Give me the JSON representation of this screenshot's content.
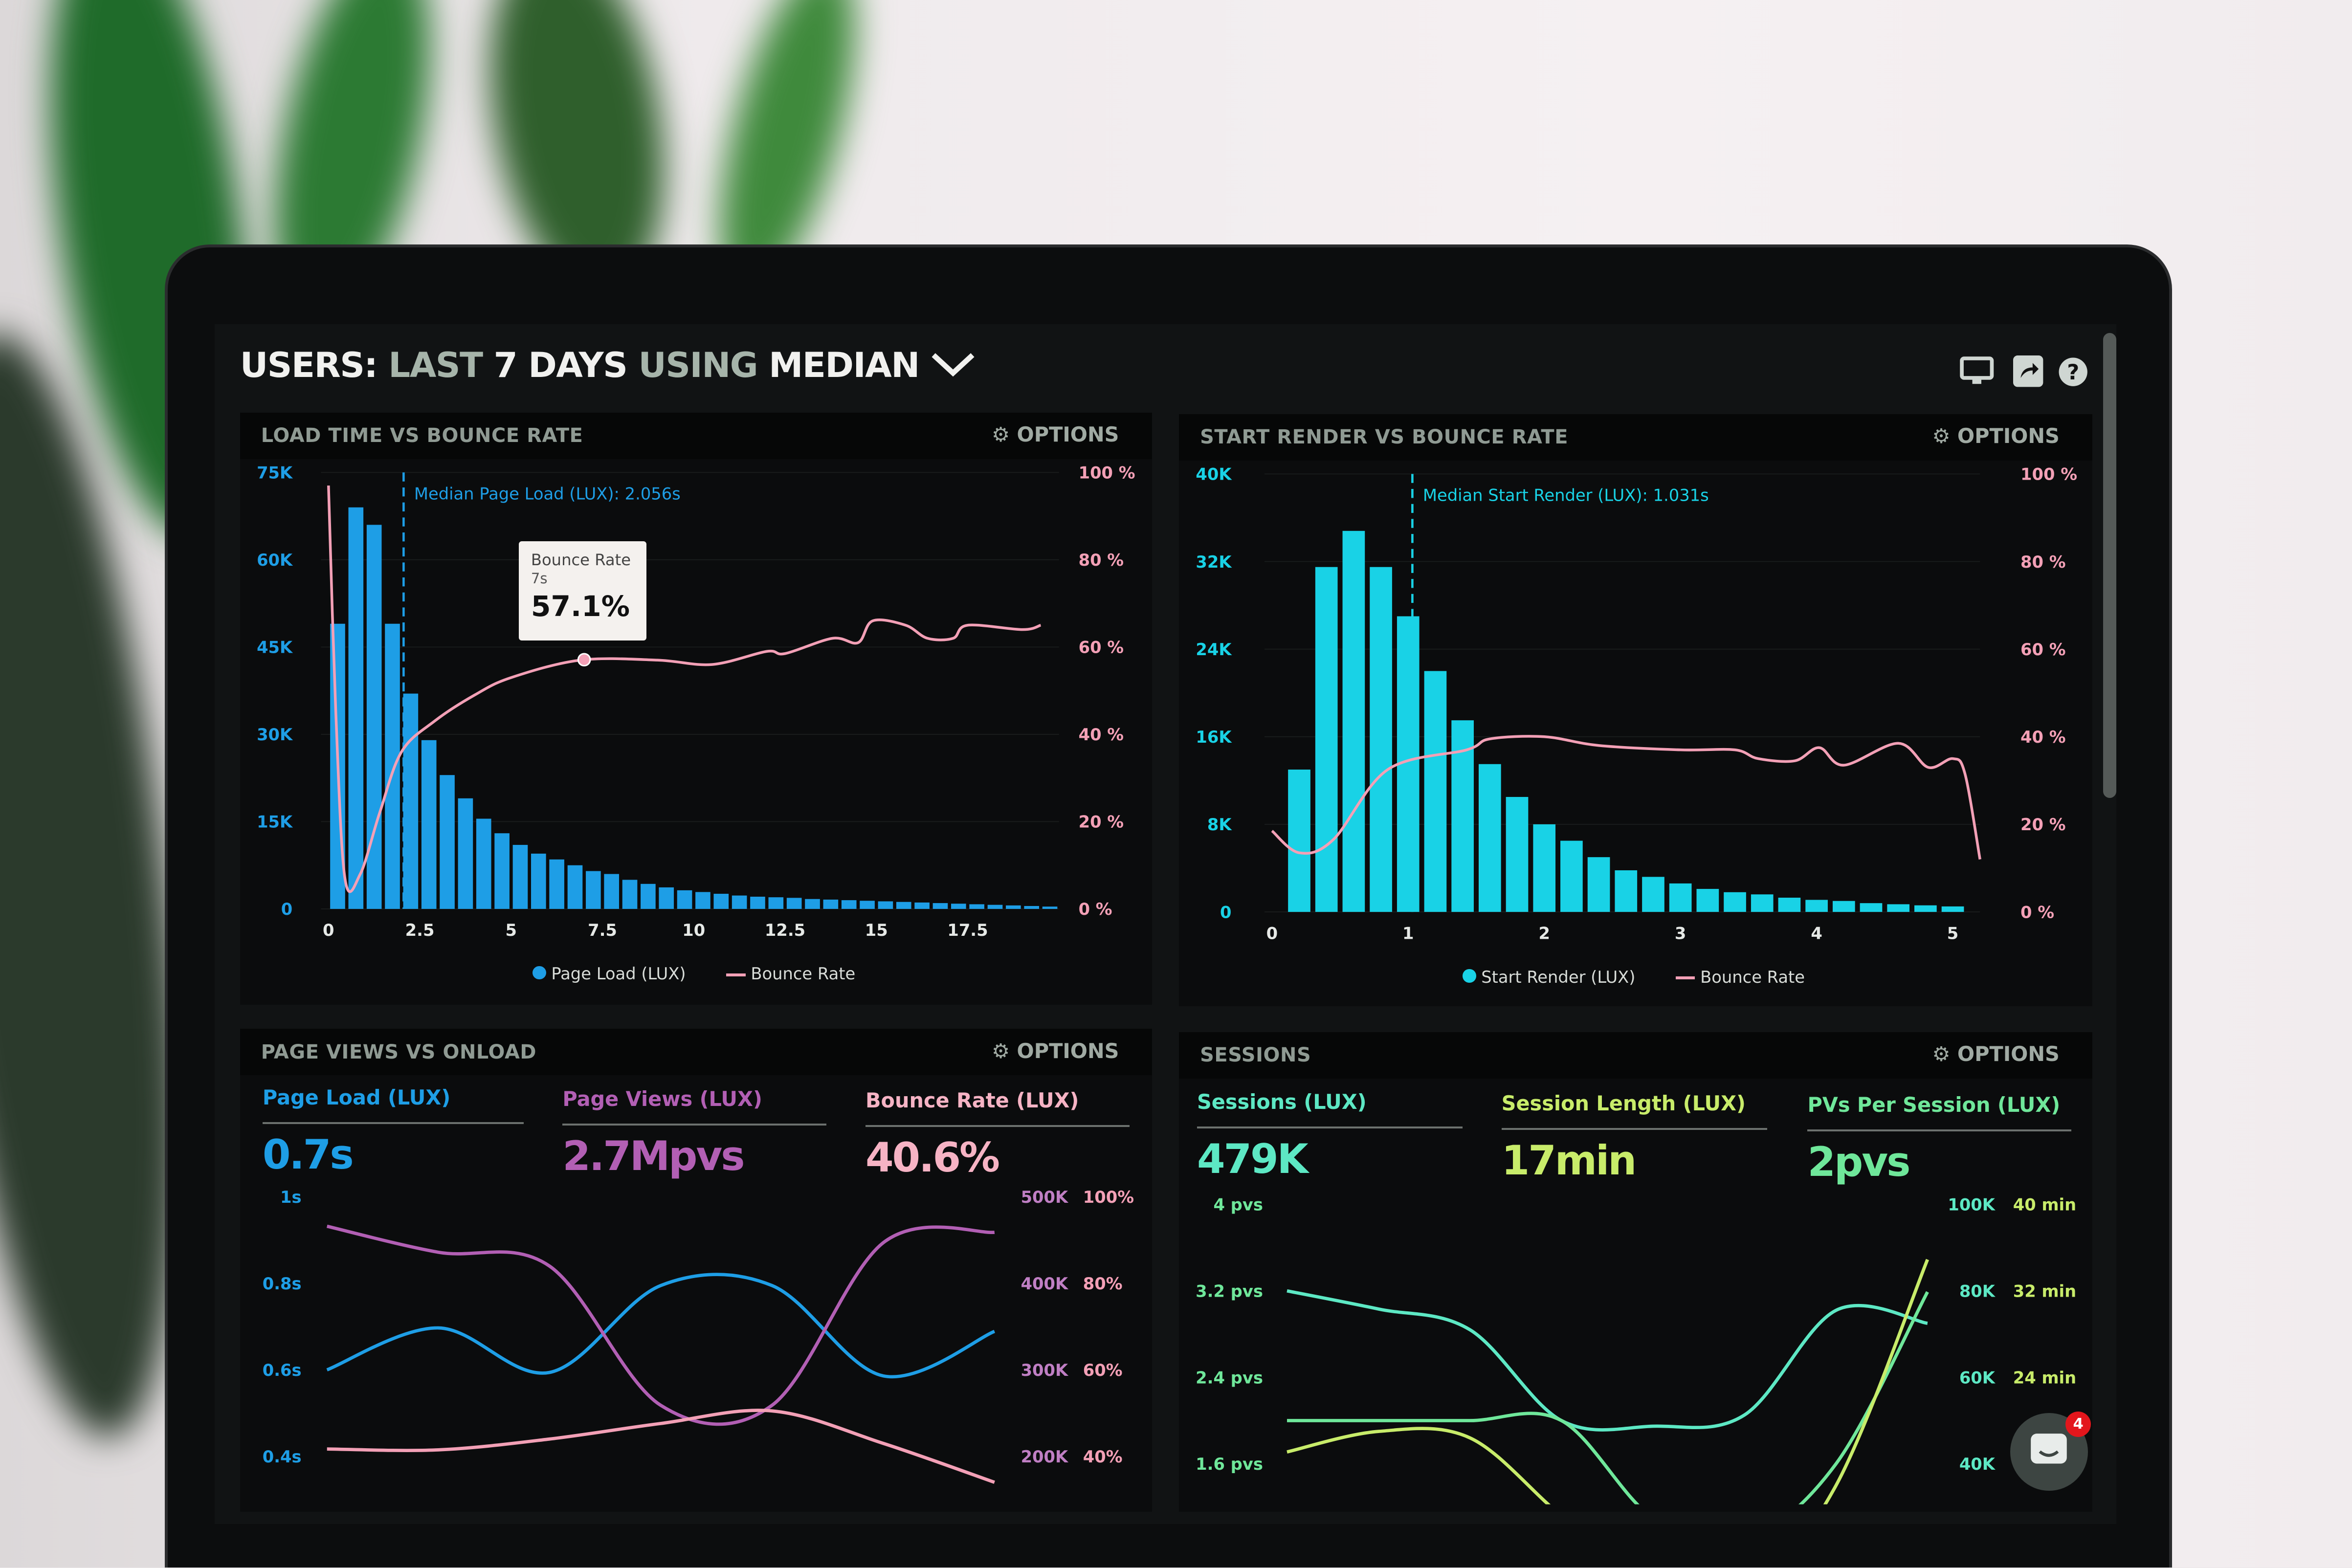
{
  "header": {
    "title_parts": [
      "USERS:",
      "LAST",
      "7 DAYS",
      "USING",
      "MEDIAN"
    ],
    "dropdown_icon": "chevron-down-icon",
    "toolbar_icons": [
      "monitor-icon",
      "share-icon",
      "help-icon"
    ]
  },
  "colors": {
    "blue": "#1e9ee6",
    "cyan": "#19d2e6",
    "pink": "#f3a0b6",
    "purple": "#b25fb4",
    "teal": "#5de8c4",
    "green": "#6fe79a",
    "lime": "#c8ec6a",
    "badge": "#e3161c"
  },
  "panels": {
    "load_time": {
      "title": "LOAD TIME VS BOUNCE RATE",
      "options": "OPTIONS",
      "median_label": "Median Page Load (LUX): 2.056s",
      "tooltip": {
        "title": "Bounce Rate",
        "x": "7s",
        "value": "57.1%"
      },
      "legend": [
        "Page Load (LUX)",
        "Bounce Rate"
      ]
    },
    "start_render": {
      "title": "START RENDER VS BOUNCE RATE",
      "options": "OPTIONS",
      "median_label": "Median Start Render (LUX): 1.031s",
      "legend": [
        "Start Render (LUX)",
        "Bounce Rate"
      ]
    },
    "page_views": {
      "title": "PAGE VIEWS VS ONLOAD",
      "options": "OPTIONS",
      "metrics": [
        {
          "label": "Page Load (LUX)",
          "value": "0.7s"
        },
        {
          "label": "Page Views (LUX)",
          "value": "2.7Mpvs"
        },
        {
          "label": "Bounce Rate (LUX)",
          "value": "40.6%"
        }
      ]
    },
    "sessions": {
      "title": "SESSIONS",
      "options": "OPTIONS",
      "metrics": [
        {
          "label": "Sessions (LUX)",
          "value": "479K"
        },
        {
          "label": "Session Length (LUX)",
          "value": "17min"
        },
        {
          "label": "PVs Per Session (LUX)",
          "value": "2pvs"
        }
      ]
    }
  },
  "chat": {
    "badge": "4",
    "icon": "chat-icon"
  },
  "chart_data": [
    {
      "type": "bar+line",
      "title": "LOAD TIME VS BOUNCE RATE",
      "x_ticks": [
        "0",
        "2.5",
        "5",
        "7.5",
        "10",
        "12.5",
        "15",
        "17.5"
      ],
      "xlim": [
        0,
        20
      ],
      "y_left_ticks": [
        "0",
        "15K",
        "30K",
        "45K",
        "60K",
        "75K"
      ],
      "ylim_left": [
        0,
        75000
      ],
      "y_right_ticks": [
        "0 %",
        "20 %",
        "40 %",
        "60 %",
        "80 %",
        "100 %"
      ],
      "ylim_right": [
        0,
        100
      ],
      "median_x": 2.056,
      "series": [
        {
          "name": "Page Load (LUX)",
          "type": "bar",
          "bin_width": 0.5,
          "values": [
            49000,
            69000,
            66000,
            49000,
            37000,
            29000,
            23000,
            19000,
            15500,
            13000,
            11000,
            9500,
            8500,
            7500,
            6500,
            6000,
            5000,
            4300,
            3700,
            3200,
            2900,
            2600,
            2300,
            2100,
            2000,
            1900,
            1700,
            1600,
            1500,
            1400,
            1300,
            1200,
            1100,
            1000,
            900,
            800,
            700,
            600,
            500,
            400
          ]
        },
        {
          "name": "Bounce Rate",
          "type": "line",
          "points": [
            [
              0,
              97
            ],
            [
              0.2,
              45
            ],
            [
              0.45,
              7
            ],
            [
              0.87,
              8
            ],
            [
              1.4,
              22
            ],
            [
              2.0,
              36
            ],
            [
              2.9,
              43
            ],
            [
              4,
              49
            ],
            [
              5,
              53
            ],
            [
              6.9,
              57
            ],
            [
              9,
              57
            ],
            [
              10.5,
              56
            ],
            [
              12,
              59
            ],
            [
              12.5,
              58.5
            ],
            [
              13.8,
              62
            ],
            [
              14.5,
              61
            ],
            [
              14.9,
              66
            ],
            [
              15.8,
              65
            ],
            [
              16.4,
              62
            ],
            [
              17.1,
              62
            ],
            [
              17.5,
              65
            ],
            [
              19,
              64
            ],
            [
              19.5,
              65
            ]
          ]
        }
      ]
    },
    {
      "type": "bar+line",
      "title": "START RENDER VS BOUNCE RATE",
      "x_ticks": [
        "0",
        "1",
        "2",
        "3",
        "4",
        "5"
      ],
      "xlim": [
        0,
        5.2
      ],
      "y_left_ticks": [
        "0",
        "8K",
        "16K",
        "24K",
        "32K",
        "40K"
      ],
      "ylim_left": [
        0,
        40000
      ],
      "y_right_ticks": [
        "0 %",
        "20 %",
        "40 %",
        "60 %",
        "80 %",
        "100 %"
      ],
      "ylim_right": [
        0,
        100
      ],
      "median_x": 1.031,
      "series": [
        {
          "name": "Start Render (LUX)",
          "type": "bar",
          "bin_width": 0.2,
          "first_center": 0.2,
          "values": [
            13000,
            31500,
            34800,
            31500,
            27000,
            22000,
            17500,
            13500,
            10500,
            8000,
            6500,
            5000,
            3800,
            3200,
            2600,
            2100,
            1800,
            1600,
            1300,
            1100,
            1000,
            800,
            700,
            600,
            500
          ]
        },
        {
          "name": "Bounce Rate",
          "type": "line",
          "points": [
            [
              0,
              18.5
            ],
            [
              0.2,
              13.5
            ],
            [
              0.45,
              16.5
            ],
            [
              0.85,
              32.5
            ],
            [
              1.43,
              37
            ],
            [
              1.6,
              39.5
            ],
            [
              2.0,
              40
            ],
            [
              2.4,
              38
            ],
            [
              3.0,
              37
            ],
            [
              3.4,
              37
            ],
            [
              3.57,
              35
            ],
            [
              3.84,
              34.5
            ],
            [
              4.02,
              37.5
            ],
            [
              4.2,
              33.5
            ],
            [
              4.6,
              38.5
            ],
            [
              4.82,
              33
            ],
            [
              5.0,
              35
            ],
            [
              5.09,
              31.5
            ],
            [
              5.2,
              12
            ]
          ]
        }
      ]
    },
    {
      "type": "line",
      "title": "PAGE VIEWS VS ONLOAD",
      "y_left_ticks": [
        "0.4s",
        "0.6s",
        "0.8s",
        "1s"
      ],
      "ylim_left": [
        0.4,
        1.0
      ],
      "y_right_ticks_a": [
        "200K",
        "300K",
        "400K",
        "500K"
      ],
      "ylim_right_a": [
        200000,
        500000
      ],
      "y_right_ticks_b": [
        "40%",
        "60%",
        "80%",
        "100%"
      ],
      "ylim_right_b": [
        40,
        100
      ],
      "x": [
        0,
        1,
        2,
        3,
        4,
        5,
        6
      ],
      "series": [
        {
          "name": "Page Load (LUX)",
          "axis": "left",
          "values": [
            0.6,
            0.697,
            0.594,
            0.795,
            0.795,
            0.586,
            0.689
          ]
        },
        {
          "name": "Page Views (LUX)",
          "axis": "right_a",
          "values": [
            466000,
            436000,
            420000,
            259000,
            259000,
            447000,
            459000
          ]
        },
        {
          "name": "Bounce Rate (LUX)",
          "axis": "right_b",
          "values": [
            41.7,
            41.5,
            44,
            47.6,
            50.5,
            43,
            34
          ]
        }
      ]
    },
    {
      "type": "line",
      "title": "SESSIONS",
      "y_left_ticks": [
        "1.6 pvs",
        "2.4 pvs",
        "3.2 pvs",
        "4 pvs"
      ],
      "ylim_left": [
        1.6,
        4.0
      ],
      "y_right_ticks_a": [
        "40K",
        "60K",
        "80K",
        "100K"
      ],
      "ylim_right_a": [
        40000,
        100000
      ],
      "y_right_ticks_b": [
        "24 min",
        "32 min",
        "40 min"
      ],
      "ylim_right_b": [
        16,
        40
      ],
      "x": [
        0,
        1,
        2,
        3,
        4,
        5,
        6,
        7
      ],
      "series": [
        {
          "name": "Sessions (LUX)",
          "axis": "right_a",
          "values": [
            80000,
            75800,
            71000,
            50000,
            48700,
            51300,
            75500,
            72500
          ]
        },
        {
          "name": "PVs Per Session (LUX)",
          "axis": "left",
          "values": [
            2.0,
            2.0,
            2.0,
            2.0,
            1.1,
            0.9,
            1.6,
            3.19
          ]
        },
        {
          "name": "Session Length (LUX)",
          "axis": "right_b",
          "values": [
            17.1,
            19.0,
            18.4,
            11.2,
            5,
            4,
            14,
            34.9
          ]
        }
      ]
    }
  ]
}
